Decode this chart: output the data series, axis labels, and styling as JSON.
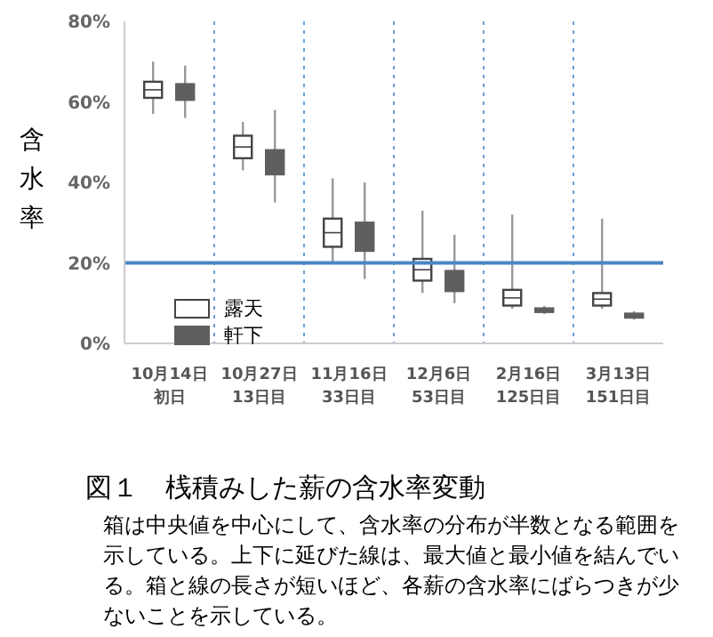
{
  "chart_data": {
    "type": "box",
    "ylabel": "含水率",
    "title": "図１　桟積みした薪の含水率変動",
    "annotations": [
      "箱は中央値を中心にして、含水率の分布が半数となる範囲を示している。上下に延びた線は、最大値と最小値を結んでいる。箱と線の長さが短いほど、各薪の含水率にばらつきが少ないことを示している。"
    ],
    "categories": [
      "10月14日初日",
      "10月27日13日目",
      "11月16日33日目",
      "12月6日53日目",
      "2月16日125日目",
      "3月13日151日目"
    ],
    "series": [
      {
        "name": "露天",
        "color": "#ffffff",
        "boxes": [
          {
            "low": 57,
            "q1": 61,
            "median": 63,
            "q3": 65,
            "high": 70
          },
          {
            "low": 43,
            "q1": 46,
            "median": 48.8,
            "q3": 51.6,
            "high": 55
          },
          {
            "low": 20,
            "q1": 24,
            "median": 27.5,
            "q3": 31,
            "high": 41
          },
          {
            "low": 12.5,
            "q1": 15.6,
            "median": 18.3,
            "q3": 21,
            "high": 33
          },
          {
            "low": 8.6,
            "q1": 9.4,
            "median": 11.3,
            "q3": 13.3,
            "high": 32
          },
          {
            "low": 8.6,
            "q1": 9.4,
            "median": 11,
            "q3": 12.5,
            "high": 31
          }
        ]
      },
      {
        "name": "軒下",
        "color": "#5f5f5f",
        "boxes": [
          {
            "low": 56,
            "q1": 60.5,
            "median": 62.4,
            "q3": 64.4,
            "high": 69
          },
          {
            "low": 35,
            "q1": 42,
            "median": 45,
            "q3": 48,
            "high": 58
          },
          {
            "low": 16,
            "q1": 23,
            "median": 26.5,
            "q3": 30,
            "high": 40
          },
          {
            "low": 10,
            "q1": 13,
            "median": 15.5,
            "q3": 18,
            "high": 27
          },
          {
            "low": 7.3,
            "q1": 7.8,
            "median": 8.2,
            "q3": 8.7,
            "high": 9.3
          },
          {
            "low": 5.9,
            "q1": 6.4,
            "median": 6.9,
            "q3": 7.4,
            "high": 8
          }
        ]
      }
    ],
    "ylim": [
      0,
      80
    ],
    "yticks": [
      {
        "value": 0,
        "label": "0%"
      },
      {
        "value": 20,
        "label": "20%"
      },
      {
        "value": 40,
        "label": "40%"
      },
      {
        "value": 60,
        "label": "60%"
      },
      {
        "value": 80,
        "label": "80%"
      }
    ],
    "ref_lines": [
      {
        "axis": "y",
        "value": 20,
        "label": null,
        "color": "#4a86c5"
      }
    ],
    "grid": "x",
    "legend": "left"
  }
}
